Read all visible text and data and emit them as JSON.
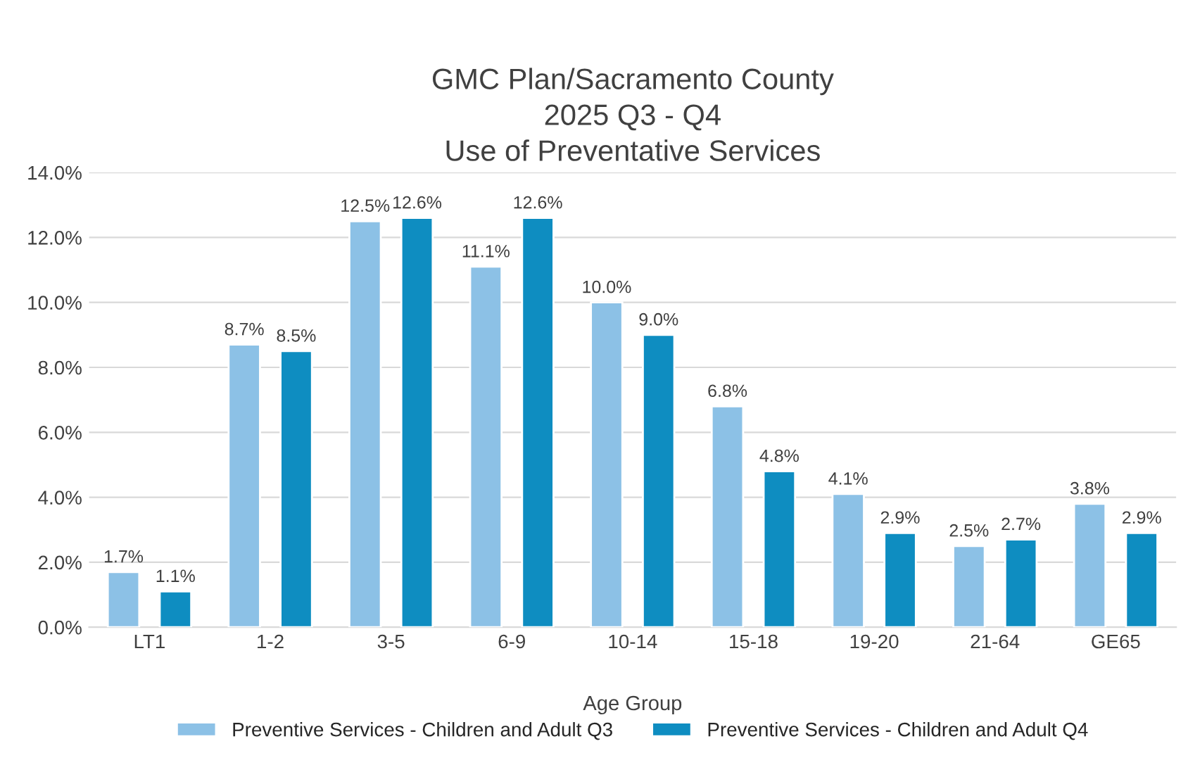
{
  "chart_data": {
    "type": "bar",
    "title": "GMC Plan/Sacramento County\n2025 Q3 - Q4\nUse of Preventative Services",
    "xlabel": "Age Group",
    "categories": [
      "LT1",
      "1-2",
      "3-5",
      "6-9",
      "10-14",
      "15-18",
      "19-20",
      "21-64",
      "GE65"
    ],
    "series": [
      {
        "name": "Preventive Services - Children and Adult Q3",
        "color": "#8cc1e6",
        "values": [
          1.7,
          8.7,
          12.5,
          11.1,
          10.0,
          6.8,
          4.1,
          2.5,
          3.8
        ],
        "value_labels": [
          "1.7%",
          "8.7%",
          "12.5%",
          "11.1%",
          "10.0%",
          "6.8%",
          "4.1%",
          "2.5%",
          "3.8%"
        ]
      },
      {
        "name": "Preventive Services - Children and Adult Q4",
        "color": "#0e8dc1",
        "values": [
          1.1,
          8.5,
          12.6,
          12.6,
          9.0,
          4.8,
          2.9,
          2.7,
          2.9
        ],
        "value_labels": [
          "1.1%",
          "8.5%",
          "12.6%",
          "12.6%",
          "9.0%",
          "4.8%",
          "2.9%",
          "2.7%",
          "2.9%"
        ]
      }
    ],
    "ylim": [
      0,
      14
    ],
    "yticks": [
      {
        "value": 0,
        "label": "0.0%"
      },
      {
        "value": 2,
        "label": "2.0%"
      },
      {
        "value": 4,
        "label": "4.0%"
      },
      {
        "value": 6,
        "label": "6.0%"
      },
      {
        "value": 8,
        "label": "8.0%"
      },
      {
        "value": 10,
        "label": "10.0%"
      },
      {
        "value": 12,
        "label": "12.0%"
      },
      {
        "value": 14,
        "label": "14.0%"
      }
    ],
    "grid": "y",
    "legend": "bottom"
  }
}
